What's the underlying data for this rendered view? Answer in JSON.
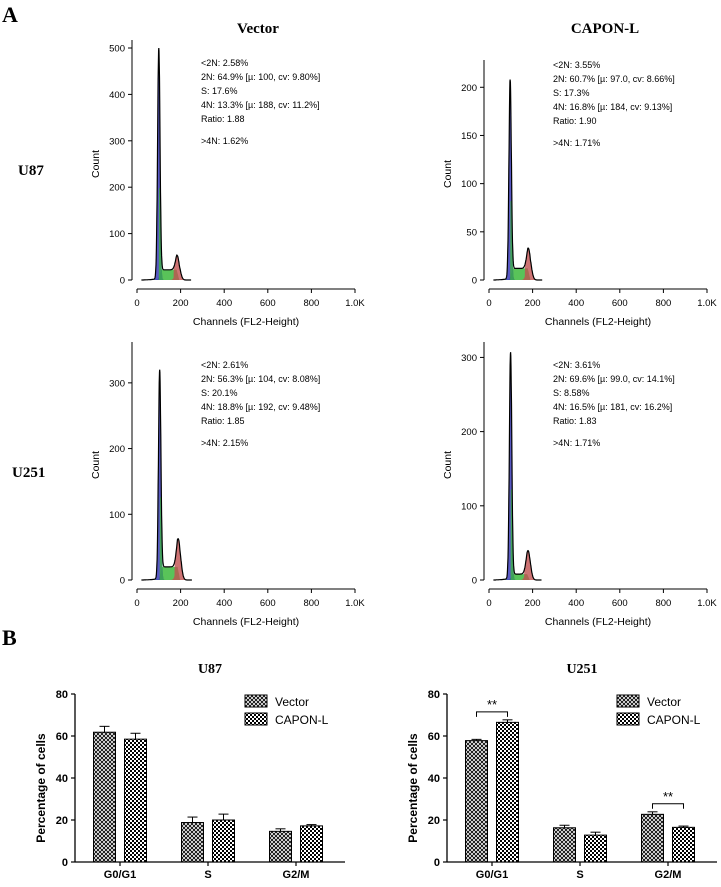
{
  "panel_labels": {
    "a": "A",
    "b": "B"
  },
  "flow": {
    "columns": [
      "Vector",
      "CAPON-L"
    ],
    "rows": [
      "U87",
      "U251"
    ],
    "xlabel": "Channels (FL2-Height)",
    "ylabel": "Count",
    "colors": {
      "g1": "#3b3bb8",
      "s": "#3cb93c",
      "g2": "#c05050",
      "line": "#000000"
    }
  },
  "chart_data": [
    {
      "type": "area",
      "title": "U87 Vector",
      "xlim": [
        0,
        1000
      ],
      "ylim": [
        0,
        500
      ],
      "yticks": [
        0,
        100,
        200,
        300,
        400,
        500
      ],
      "xticks": [
        0,
        200,
        400,
        600,
        800,
        1000
      ],
      "xtick_labels": [
        "0",
        "200",
        "400",
        "600",
        "800",
        "1.0K"
      ],
      "peaks": {
        "g1": {
          "mu": 100,
          "height": 495
        },
        "g2": {
          "mu": 188,
          "height": 38
        },
        "s_level": 22,
        "debris_height": 4
      },
      "stats": [
        "<2N:  2.58%",
        "2N: 64.9%    [µ: 100, cv: 9.80%]",
        "S:  17.6%",
        "4N: 13.3%    [µ: 188, cv: 11.2%]",
        "Ratio:  1.88",
        ">4N:  1.62%"
      ]
    },
    {
      "type": "area",
      "title": "U87 CAPON-L",
      "xlim": [
        0,
        1000
      ],
      "ylim": [
        0,
        220
      ],
      "yticks": [
        0,
        50,
        100,
        150,
        200
      ],
      "xticks": [
        0,
        200,
        400,
        600,
        800,
        1000
      ],
      "xtick_labels": [
        "0",
        "200",
        "400",
        "600",
        "800",
        "1.0K"
      ],
      "peaks": {
        "g1": {
          "mu": 97,
          "height": 205
        },
        "g2": {
          "mu": 184,
          "height": 25
        },
        "s_level": 12,
        "debris_height": 2
      },
      "stats": [
        "<2N:  3.55%",
        "2N: 60.7%    [µ: 97.0, cv: 8.66%]",
        "S:  17.3%",
        "4N: 16.8%    [µ: 184, cv: 9.13%]",
        "Ratio:  1.90",
        ">4N:  1.71%"
      ]
    },
    {
      "type": "area",
      "title": "U251 Vector",
      "xlim": [
        0,
        1000
      ],
      "ylim": [
        0,
        350
      ],
      "yticks": [
        0,
        100,
        200,
        300
      ],
      "xticks": [
        0,
        200,
        400,
        600,
        800,
        1000
      ],
      "xtick_labels": [
        "0",
        "200",
        "400",
        "600",
        "800",
        "1.0K"
      ],
      "peaks": {
        "g1": {
          "mu": 104,
          "height": 315
        },
        "g2": {
          "mu": 192,
          "height": 50
        },
        "s_level": 20,
        "debris_height": 3
      },
      "stats": [
        "<2N:  2.61%",
        "2N: 56.3%    [µ: 104, cv: 8.08%]",
        "S:  20.1%",
        "4N: 18.8%    [µ: 192, cv: 9.48%]",
        "Ratio:  1.85",
        ">4N:  2.15%"
      ]
    },
    {
      "type": "area",
      "title": "U251 CAPON-L",
      "xlim": [
        0,
        1000
      ],
      "ylim": [
        0,
        310
      ],
      "yticks": [
        0,
        100,
        200,
        300
      ],
      "xticks": [
        0,
        200,
        400,
        600,
        800,
        1000
      ],
      "xtick_labels": [
        "0",
        "200",
        "400",
        "600",
        "800",
        "1.0K"
      ],
      "peaks": {
        "g1": {
          "mu": 99,
          "height": 305
        },
        "g2": {
          "mu": 181,
          "height": 35
        },
        "s_level": 8,
        "debris_height": 3
      },
      "stats": [
        "<2N:  3.61%",
        "2N: 69.6%    [µ: 99.0, cv: 14.1%]",
        "S:  8.58%",
        "4N: 16.5%    [µ: 181, cv: 16.2%]",
        "Ratio:  1.83",
        ">4N:  1.71%"
      ]
    },
    {
      "type": "bar",
      "title": "U87",
      "categories": [
        "G0/G1",
        "S",
        "G2/M"
      ],
      "ylabel": "Percentage of cells",
      "ylim": [
        0,
        80
      ],
      "yticks": [
        0,
        20,
        40,
        60,
        80
      ],
      "series": [
        {
          "name": "Vector",
          "values": [
            61.8,
            18.8,
            14.6
          ],
          "errors": [
            2.8,
            2.6,
            1.2
          ]
        },
        {
          "name": "CAPON-L",
          "values": [
            58.5,
            20.0,
            17.2
          ],
          "errors": [
            2.8,
            2.8,
            0.6
          ]
        }
      ],
      "significance": []
    },
    {
      "type": "bar",
      "title": "U251",
      "categories": [
        "G0/G1",
        "S",
        "G2/M"
      ],
      "ylabel": "Percentage of cells",
      "ylim": [
        0,
        80
      ],
      "yticks": [
        0,
        20,
        40,
        60,
        80
      ],
      "series": [
        {
          "name": "Vector",
          "values": [
            57.8,
            16.3,
            22.7
          ],
          "errors": [
            0.6,
            1.2,
            1.2
          ]
        },
        {
          "name": "CAPON-L",
          "values": [
            66.5,
            12.8,
            16.5
          ],
          "errors": [
            1.2,
            1.4,
            0.6
          ]
        }
      ],
      "significance": [
        {
          "category": "G0/G1",
          "label": "**"
        },
        {
          "category": "G2/M",
          "label": "**"
        }
      ]
    }
  ]
}
